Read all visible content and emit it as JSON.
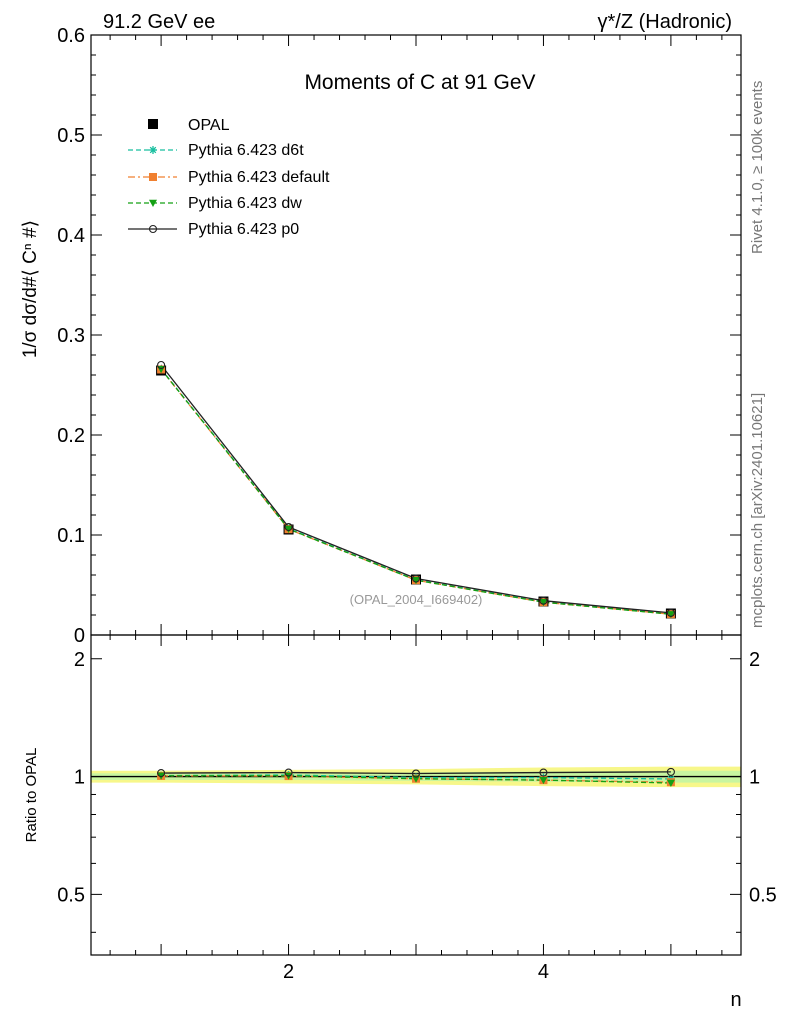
{
  "header": {
    "left": "91.2 GeV ee",
    "right": "γ*/Z (Hadronic)"
  },
  "side_labels": {
    "rivet": "Rivet 4.1.0, ≥ 100k events",
    "mcplots": "mcplots.cern.ch [arXiv:2401.10621]"
  },
  "chart_data": {
    "type": "line",
    "title": "Moments of C at 91 GeV",
    "analysis_id": "(OPAL_2004_I669402)",
    "xlabel": "n",
    "ylabel": "1/σ  dσ/d#⟨ Cⁿ #⟩",
    "xlim": [
      0.45,
      5.55
    ],
    "ylim": [
      0,
      0.6
    ],
    "x": [
      1,
      2,
      3,
      4,
      5
    ],
    "x_ticks": [
      "2",
      "4"
    ],
    "y_ticks": [
      "0",
      "0.1",
      "0.2",
      "0.3",
      "0.4",
      "0.5",
      "0.6"
    ],
    "data": {
      "name": "OPAL",
      "color": "#000000",
      "values": [
        0.2645,
        0.1055,
        0.0555,
        0.0335,
        0.0215
      ]
    },
    "series": [
      {
        "name": "Pythia 6.423 d6t",
        "color": "#17bf9f",
        "marker": "asterisk",
        "dash": "dashed",
        "values": [
          0.266,
          0.1065,
          0.0552,
          0.0333,
          0.0212
        ]
      },
      {
        "name": "Pythia 6.423 default",
        "color": "#f08030",
        "marker": "square",
        "dash": "dashdot",
        "values": [
          0.2655,
          0.1058,
          0.0548,
          0.0328,
          0.0208
        ]
      },
      {
        "name": "Pythia 6.423 dw",
        "color": "#14a014",
        "marker": "triangle-down",
        "dash": "dashed",
        "values": [
          0.2658,
          0.106,
          0.0548,
          0.0328,
          0.0207
        ]
      },
      {
        "name": "Pythia 6.423 p0",
        "color": "#222222",
        "marker": "circle",
        "dash": "solid",
        "values": [
          0.27,
          0.108,
          0.0565,
          0.0343,
          0.0221
        ]
      }
    ],
    "ratio": {
      "ylabel": "Ratio to OPAL",
      "ylim": [
        0.35,
        2.3
      ],
      "y_ticks": [
        "0.5",
        "1",
        "2"
      ],
      "band_inner": [
        0.02,
        0.02,
        0.025,
        0.03,
        0.035
      ],
      "band_outer": [
        0.035,
        0.04,
        0.045,
        0.055,
        0.06
      ]
    }
  }
}
